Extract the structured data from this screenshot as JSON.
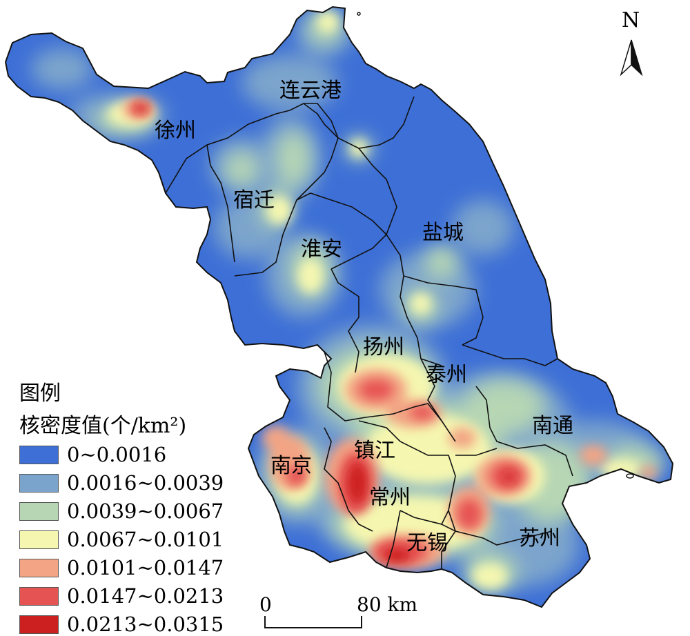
{
  "cities": {
    "xuzhou": "徐州",
    "lianyungang": "连云港",
    "suqian": "宿迁",
    "huaian": "淮安",
    "yancheng": "盐城",
    "yangzhou": "扬州",
    "taizhou": "泰州",
    "nantong": "南通",
    "zhenjiang": "镇江",
    "nanjing": "南京",
    "changzhou": "常州",
    "wuxi": "无锡",
    "suzhou": "苏州"
  },
  "legend": {
    "title": "图例",
    "subtitle": "核密度值(个/km²)",
    "items": [
      {
        "label": "0~0.0016",
        "color": "#3d6fd6"
      },
      {
        "label": "0.0016~0.0039",
        "color": "#7ba4cc"
      },
      {
        "label": "0.0039~0.0067",
        "color": "#b6d6b4"
      },
      {
        "label": "0.0067~0.0101",
        "color": "#f5f7b0"
      },
      {
        "label": "0.0101~0.0147",
        "color": "#f3a484"
      },
      {
        "label": "0.0147~0.0213",
        "color": "#e65353"
      },
      {
        "label": "0.0213~0.0315",
        "color": "#cc1f1f"
      }
    ]
  },
  "north_arrow": {
    "label": "N",
    "icon": "north-arrow-icon"
  },
  "scale_bar": {
    "zero": "0",
    "distance": "80 km"
  }
}
